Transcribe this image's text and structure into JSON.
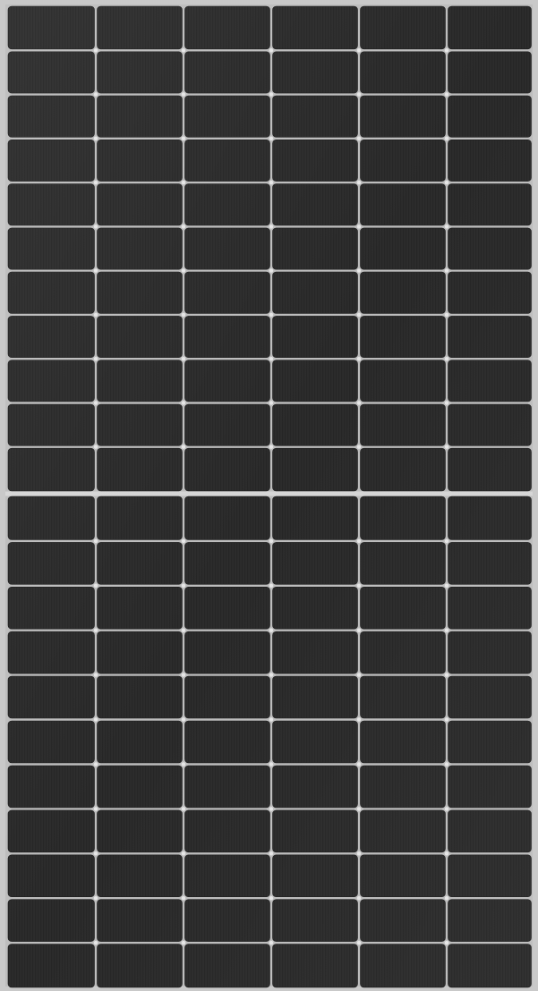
{
  "image": {
    "subject": "solar-panel",
    "colors": {
      "frame": "#c9c9c9",
      "frame_dark": "#9a9a9a",
      "cell": "#272727",
      "cell_stripe": "#313131",
      "gap_highlight": "#d8d8d8"
    },
    "panel": {
      "columns": 6,
      "rows_per_half": 11,
      "halves": 2,
      "fingers_per_cell": 34
    }
  }
}
